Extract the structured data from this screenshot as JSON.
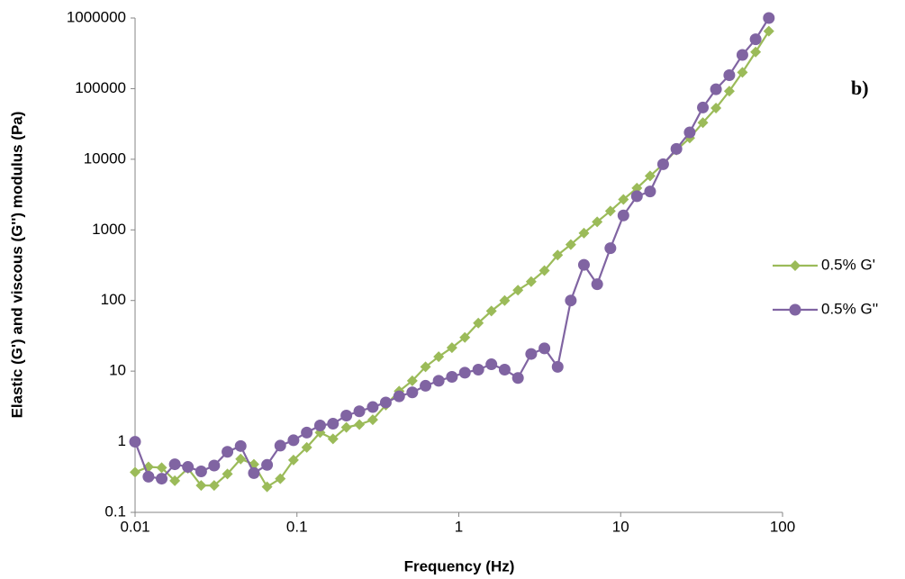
{
  "chart_data": {
    "type": "line",
    "annotation": "b)",
    "x_label": "Frequency (Hz)",
    "y_label": "Elastic (G') and viscous (G'') modulus (Pa)",
    "log_x": true,
    "log_y": true,
    "grid": false,
    "legend_position": "right",
    "x": [
      0.01,
      0.0121,
      0.0146,
      0.0176,
      0.0212,
      0.0256,
      0.0308,
      0.0372,
      0.0449,
      0.0542,
      0.0654,
      0.0789,
      0.0952,
      0.115,
      0.139,
      0.167,
      0.202,
      0.243,
      0.294,
      0.354,
      0.428,
      0.516,
      0.623,
      0.751,
      0.907,
      1.09,
      1.32,
      1.59,
      1.92,
      2.32,
      2.8,
      3.38,
      4.08,
      4.92,
      5.93,
      7.16,
      8.64,
      10.4,
      12.6,
      15.2,
      18.3,
      22.1,
      26.7,
      32.2,
      38.8,
      46.9,
      56.5,
      68.2,
      82.3
    ],
    "series": [
      {
        "name": "0.5% G'",
        "color": "#9bbb59",
        "marker": "diamond",
        "values": [
          0.37,
          0.44,
          0.43,
          0.28,
          0.42,
          0.24,
          0.24,
          0.35,
          0.57,
          0.48,
          0.23,
          0.3,
          0.55,
          0.83,
          1.35,
          1.1,
          1.6,
          1.75,
          2.05,
          3.3,
          5.2,
          7.3,
          11.5,
          16,
          21.5,
          30,
          48,
          71,
          100,
          140,
          185,
          265,
          440,
          620,
          900,
          1300,
          1850,
          2700,
          3900,
          5800,
          8500,
          13500,
          20000,
          33000,
          53000,
          92000,
          170000,
          330000,
          650000
        ]
      },
      {
        "name": "0.5% G''",
        "color": "#8064a2",
        "marker": "circle",
        "values": [
          1,
          0.32,
          0.3,
          0.48,
          0.44,
          0.38,
          0.46,
          0.72,
          0.87,
          0.36,
          0.47,
          0.88,
          1.05,
          1.35,
          1.7,
          1.8,
          2.35,
          2.7,
          3.1,
          3.6,
          4.4,
          5.0,
          6.2,
          7.3,
          8.3,
          9.5,
          10.5,
          12.5,
          10.5,
          8,
          17.5,
          21,
          11.5,
          100,
          320,
          170,
          550,
          1600,
          3000,
          3500,
          8500,
          14000,
          24000,
          54000,
          98000,
          155000,
          300000,
          500000,
          1000000
        ]
      }
    ],
    "xlim": [
      0.01,
      100
    ],
    "xticks": [
      0.01,
      0.1,
      1,
      10,
      100
    ],
    "ylim": [
      0.1,
      1000000
    ],
    "yticks": [
      0.1,
      1,
      10,
      100,
      1000,
      10000,
      100000,
      1000000
    ]
  }
}
